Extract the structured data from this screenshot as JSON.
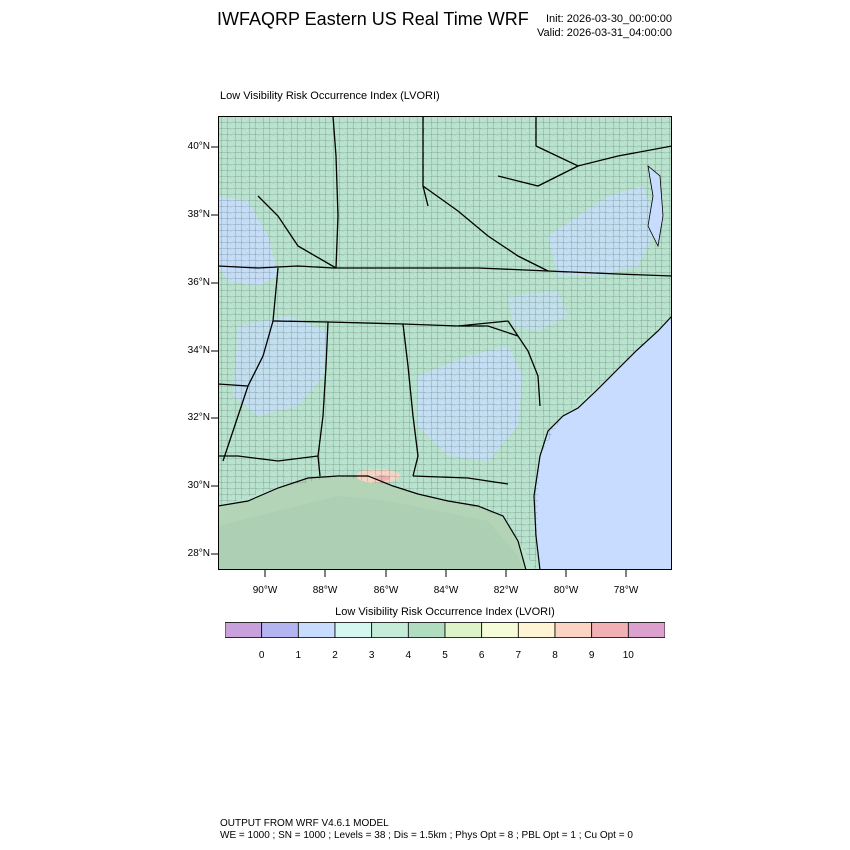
{
  "header": {
    "title": "IWFAQRP Eastern US Real Time WRF",
    "init": "Init: 2026-03-30_00:00:00",
    "valid": "Valid: 2026-03-31_04:00:00"
  },
  "panel": {
    "title": "Low Visibility Risk Occurrence Index   (LVORI)"
  },
  "map": {
    "lat_labels": [
      "40°N",
      "38°N",
      "36°N",
      "34°N",
      "32°N",
      "30°N",
      "28°N"
    ],
    "lon_labels": [
      "90°W",
      "88°W",
      "86°W",
      "84°W",
      "82°W",
      "80°W",
      "78°W"
    ],
    "region": "Southeastern United States",
    "ocean_color": "#c8dcff",
    "gulf_color": "#b4d4b8",
    "land_base_color": "#b9e3cf"
  },
  "colorbar": {
    "title": "Low Visibility Risk Occurrence Index  (LVORI)",
    "labels": [
      "0",
      "1",
      "2",
      "3",
      "4",
      "5",
      "6",
      "7",
      "8",
      "9",
      "10"
    ],
    "colors": [
      "#c8a0dc",
      "#b4b4f0",
      "#c8dcff",
      "#d4f8f0",
      "#c4ecd8",
      "#b0dcc0",
      "#dcf4c8",
      "#f4fcd8",
      "#fff4d4",
      "#fcd4c4",
      "#f0b0b4",
      "#dca0cc"
    ]
  },
  "footer": {
    "line1": "OUTPUT FROM WRF V4.6.1 MODEL",
    "line2": "WE = 1000 ; SN = 1000 ; Levels = 38 ; Dis = 1.5km ; Phys Opt = 8 ; PBL Opt = 1 ; Cu Opt = 0"
  }
}
